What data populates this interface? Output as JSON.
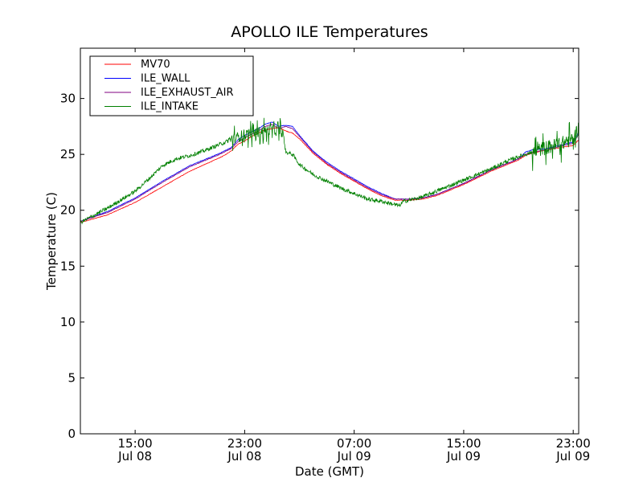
{
  "chart_data": {
    "type": "line",
    "title": "APOLLO ILE Temperatures",
    "xlabel": "Date (GMT)",
    "ylabel": "Temperature (C)",
    "x_unit": "hours since Jul 08 11:00 GMT",
    "xlim": [
      0,
      36.4
    ],
    "ylim": [
      0,
      34.5
    ],
    "grid": false,
    "legend_position": "top-left",
    "y_ticks": [
      0,
      5,
      10,
      15,
      20,
      25,
      30
    ],
    "x_ticks": [
      {
        "x": 4,
        "line1": "15:00",
        "line2": "Jul 08"
      },
      {
        "x": 12,
        "line1": "23:00",
        "line2": "Jul 08"
      },
      {
        "x": 20,
        "line1": "07:00",
        "line2": "Jul 09"
      },
      {
        "x": 28,
        "line1": "15:00",
        "line2": "Jul 09"
      },
      {
        "x": 36,
        "line1": "23:00",
        "line2": "Jul 09"
      }
    ],
    "series": [
      {
        "name": "MV70",
        "color": "#ff0000",
        "noise": 0.05,
        "x": [
          0,
          2,
          4,
          6,
          8,
          10,
          10.5,
          11.0,
          11.5,
          12.0,
          12.5,
          13.0,
          13.5,
          14.0,
          14.5,
          15.0,
          15.5,
          16,
          17,
          18,
          19,
          20,
          21,
          22,
          23,
          24,
          25,
          26,
          27,
          28,
          29,
          30,
          31,
          32,
          32.5,
          33,
          34,
          35,
          36,
          36.4
        ],
        "y": [
          18.9,
          19.6,
          20.7,
          22.1,
          23.5,
          24.6,
          24.9,
          25.3,
          25.9,
          26.2,
          26.6,
          26.9,
          27.2,
          27.3,
          27.4,
          27.1,
          26.9,
          26.4,
          25.1,
          24.1,
          23.3,
          22.6,
          21.9,
          21.3,
          20.9,
          20.9,
          21.0,
          21.3,
          21.8,
          22.3,
          22.9,
          23.5,
          24.0,
          24.5,
          24.9,
          25.1,
          25.4,
          25.6,
          25.8,
          26.3
        ]
      },
      {
        "name": "ILE_WALL",
        "color": "#0000ff",
        "noise": 0.05,
        "x": [
          0,
          2,
          4,
          6,
          8,
          10,
          10.5,
          11.0,
          11.5,
          12.0,
          12.5,
          13.0,
          13.5,
          14.0,
          14.5,
          15.0,
          15.5,
          16,
          17,
          18,
          19,
          20,
          21,
          22,
          23,
          24,
          25,
          26,
          27,
          28,
          29,
          30,
          31,
          32,
          32.5,
          33,
          34,
          35,
          36,
          36.4
        ],
        "y": [
          19.0,
          19.9,
          21.1,
          22.6,
          24.0,
          25.0,
          25.3,
          25.6,
          26.3,
          26.7,
          27.0,
          27.3,
          27.7,
          27.9,
          27.5,
          27.6,
          27.5,
          26.7,
          25.3,
          24.3,
          23.5,
          22.8,
          22.1,
          21.5,
          21.0,
          21.0,
          21.1,
          21.4,
          21.9,
          22.4,
          23.0,
          23.6,
          24.1,
          24.6,
          25.2,
          25.4,
          25.5,
          25.8,
          26.1,
          27.0
        ]
      },
      {
        "name": "ILE_EXHAUST_AIR",
        "color": "#800080",
        "noise": 0.05,
        "x": [
          0,
          2,
          4,
          6,
          8,
          10,
          10.5,
          11.0,
          11.5,
          12.0,
          12.5,
          13.0,
          13.5,
          14.0,
          14.5,
          15.0,
          15.5,
          16,
          17,
          18,
          19,
          20,
          21,
          22,
          23,
          24,
          25,
          26,
          27,
          28,
          29,
          30,
          31,
          32,
          32.5,
          33,
          34,
          35,
          36,
          36.4
        ],
        "y": [
          19.0,
          19.8,
          21.0,
          22.5,
          23.9,
          24.9,
          25.2,
          25.5,
          26.1,
          26.5,
          26.8,
          27.1,
          27.5,
          27.7,
          27.3,
          27.5,
          27.3,
          26.6,
          25.2,
          24.2,
          23.4,
          22.7,
          22.0,
          21.4,
          21.0,
          21.0,
          21.1,
          21.4,
          21.9,
          22.4,
          23.0,
          23.6,
          24.1,
          24.6,
          25.0,
          25.2,
          25.4,
          25.7,
          26.0,
          26.8
        ]
      },
      {
        "name": "ILE_INTAKE",
        "color": "#008000",
        "noise": 0.35,
        "spikes": [
          {
            "from": 10.8,
            "to": 14.8,
            "amp": 1.2
          },
          {
            "from": 33.0,
            "to": 36.4,
            "amp": 1.6
          }
        ],
        "x": [
          0,
          2,
          4,
          5,
          6,
          7,
          8,
          9,
          10,
          11,
          12,
          13,
          14,
          14.8,
          15.0,
          15.5,
          16,
          17,
          18,
          19,
          20,
          21,
          22,
          23,
          23.3,
          23.6,
          24,
          25,
          26,
          27,
          28,
          29,
          30,
          31,
          32,
          33,
          34,
          35,
          36,
          36.4
        ],
        "y": [
          18.9,
          20.2,
          21.7,
          22.8,
          24.0,
          24.6,
          24.9,
          25.3,
          25.8,
          26.3,
          26.8,
          27.0,
          27.2,
          27.0,
          25.2,
          25.0,
          24.1,
          23.2,
          22.6,
          22.0,
          21.5,
          21.0,
          20.8,
          20.5,
          20.4,
          20.8,
          20.9,
          21.2,
          21.7,
          22.2,
          22.7,
          23.2,
          23.7,
          24.3,
          24.8,
          25.2,
          25.6,
          25.9,
          26.4,
          27.4
        ]
      }
    ]
  }
}
